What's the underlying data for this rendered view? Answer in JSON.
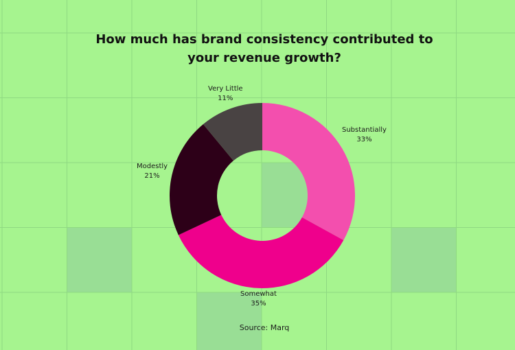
{
  "colors": {
    "background": "#a6f48f",
    "grid_line": "#8fd982",
    "grid_cell_highlight": "#99de95"
  },
  "chart_data": {
    "type": "pie",
    "subtype": "donut",
    "title_lines": [
      "How much has brand consistency contributed to",
      "your revenue growth?"
    ],
    "source": "Source: Marq",
    "slices": [
      {
        "label": "Substantially",
        "value": 33,
        "value_text": "33%",
        "color": "#f34fae"
      },
      {
        "label": "Somewhat",
        "value": 35,
        "value_text": "35%",
        "color": "#ef008c"
      },
      {
        "label": "Modestly",
        "value": 21,
        "value_text": "21%",
        "color": "#2d0018"
      },
      {
        "label": "Very Little",
        "value": 11,
        "value_text": "11%",
        "color": "#494343"
      }
    ]
  }
}
